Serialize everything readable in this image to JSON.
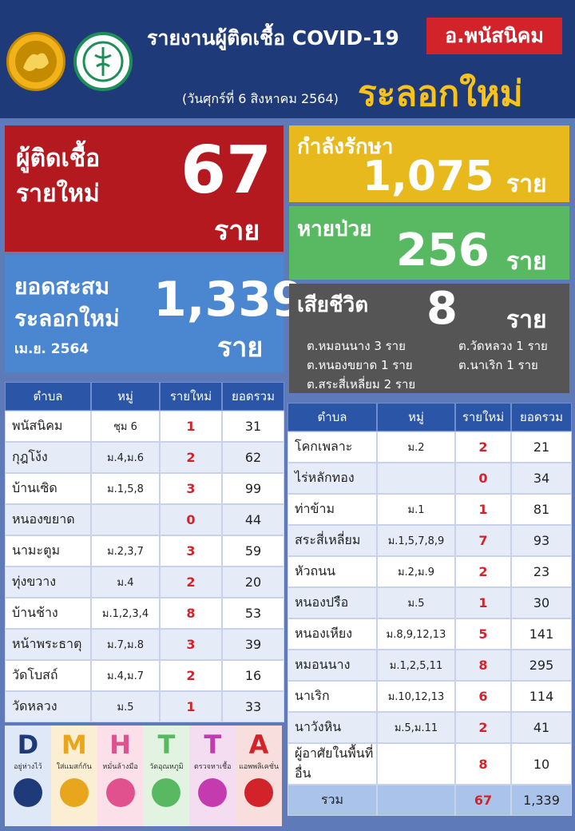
{
  "header": {
    "title": "รายงานผู้ติดเชื้อ COVID-19",
    "district": "อ.พนัสนิคม",
    "date": "(วันศุกร์ที่ 6 สิงหาคม 2564)",
    "region": "ระลอกใหม่"
  },
  "stats": {
    "new_label_1": "ผู้ติดเชื้อ",
    "new_label_2": "รายใหม่",
    "new_value": "67",
    "new_unit": "ราย",
    "cum_label_1": "ยอดสะสม",
    "cum_label_2": "ระลอกใหม่",
    "cum_label_3": "เม.ย. 2564",
    "cum_value": "1,339",
    "cum_unit": "ราย",
    "treat_label": "กำลังรักษา",
    "treat_value": "1,075",
    "treat_unit": "ราย",
    "recov_label": "หายป่วย",
    "recov_value": "256",
    "recov_unit": "ราย",
    "death_label": "เสียชีวิต",
    "death_value": "8",
    "death_unit": "ราย",
    "death_details": [
      "ต.หมอนนาง 3 ราย",
      "ต.วัดหลวง 1 ราย",
      "ต.หนองขยาด 1 ราย",
      "ต.นาเริก 1 ราย",
      "ต.สระสี่เหลี่ยม 2 ราย"
    ]
  },
  "table_headers": [
    "ตำบล",
    "หมู่",
    "รายใหม่",
    "ยอดรวม"
  ],
  "left_table": [
    [
      "พนัสนิคม",
      "ชุม 6",
      "1",
      "31"
    ],
    [
      "กุฎโง้ง",
      "ม.4,ม.6",
      "2",
      "62"
    ],
    [
      "บ้านเซิด",
      "ม.1,5,8",
      "3",
      "99"
    ],
    [
      "หนองขยาด",
      "",
      "0",
      "44"
    ],
    [
      "นามะตูม",
      "ม.2,3,7",
      "3",
      "59"
    ],
    [
      "ทุ่งขวาง",
      "ม.4",
      "2",
      "20"
    ],
    [
      "บ้านช้าง",
      "ม.1,2,3,4",
      "8",
      "53"
    ],
    [
      "หน้าพระธาตุ",
      "ม.7,ม.8",
      "3",
      "39"
    ],
    [
      "วัดโบสถ์",
      "ม.4,ม.7",
      "2",
      "16"
    ],
    [
      "วัดหลวง",
      "ม.5",
      "1",
      "33"
    ]
  ],
  "right_table": [
    [
      "โคกเพลาะ",
      "ม.2",
      "2",
      "21"
    ],
    [
      "ไร่หลักทอง",
      "",
      "0",
      "34"
    ],
    [
      "ท่าข้าม",
      "ม.1",
      "1",
      "81"
    ],
    [
      "สระสี่เหลี่ยม",
      "ม.1,5,7,8,9",
      "7",
      "93"
    ],
    [
      "หัวถนน",
      "ม.2,ม.9",
      "2",
      "23"
    ],
    [
      "หนองปรือ",
      "ม.5",
      "1",
      "30"
    ],
    [
      "หนองเหียง",
      "ม.8,9,12,13",
      "5",
      "141"
    ],
    [
      "หมอนนาง",
      "ม.1,2,5,11",
      "8",
      "295"
    ],
    [
      "นาเริก",
      "ม.10,12,13",
      "6",
      "114"
    ],
    [
      "นาวังหิน",
      "ม.5,ม.11",
      "2",
      "41"
    ],
    [
      "ผู้อาศัยในพื้นที่อื่น",
      "",
      "8",
      "10"
    ]
  ],
  "right_total": [
    "รวม",
    "",
    "67",
    "1,339"
  ],
  "dmhtta": [
    {
      "letter": "D",
      "caption": "อยู่ห่างไว้",
      "color": "#1e3a78",
      "bg": "#dfe8f7"
    },
    {
      "letter": "M",
      "caption": "ใส่แมสก์กัน",
      "color": "#e8a61c",
      "bg": "#fbeed3"
    },
    {
      "letter": "H",
      "caption": "หมั่นล้างมือ",
      "color": "#e0518d",
      "bg": "#fbe0ea"
    },
    {
      "letter": "T",
      "caption": "วัดอุณหภูมิ",
      "color": "#59b963",
      "bg": "#e3f3e1"
    },
    {
      "letter": "T",
      "caption": "ตรวจหาเชื้อ",
      "color": "#c43bb0",
      "bg": "#f4ddf0"
    },
    {
      "letter": "A",
      "caption": "แอพพลิเคชั่น",
      "color": "#d2232a",
      "bg": "#f9dede"
    }
  ]
}
